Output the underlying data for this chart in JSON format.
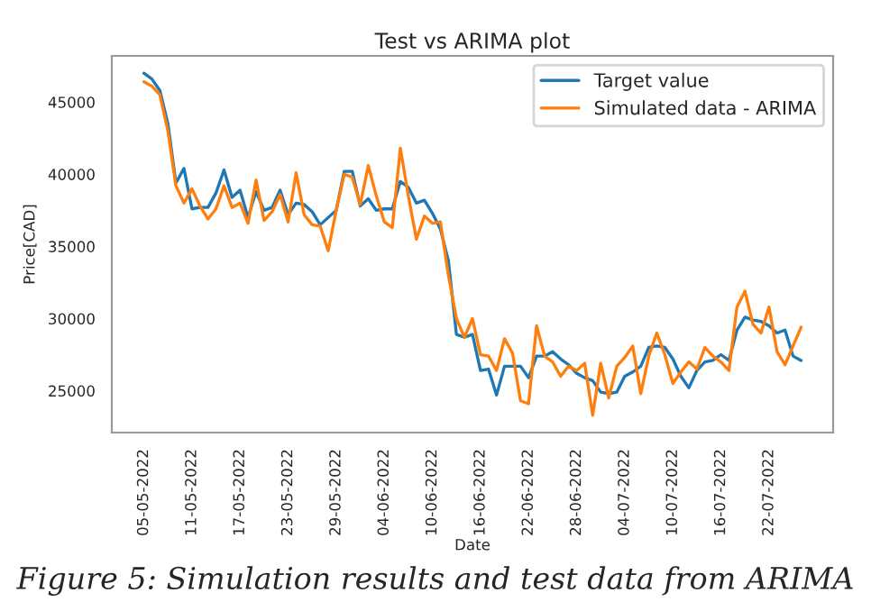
{
  "chart_data": {
    "type": "line",
    "title": "Test vs ARIMA plot",
    "xlabel": "Date",
    "ylabel": "Price[CAD]",
    "x": [
      "2022-05-05",
      "2022-05-06",
      "2022-05-07",
      "2022-05-08",
      "2022-05-09",
      "2022-05-10",
      "2022-05-11",
      "2022-05-12",
      "2022-05-13",
      "2022-05-14",
      "2022-05-15",
      "2022-05-16",
      "2022-05-17",
      "2022-05-18",
      "2022-05-19",
      "2022-05-20",
      "2022-05-21",
      "2022-05-22",
      "2022-05-23",
      "2022-05-24",
      "2022-05-25",
      "2022-05-26",
      "2022-05-27",
      "2022-05-28",
      "2022-05-29",
      "2022-05-30",
      "2022-05-31",
      "2022-06-01",
      "2022-06-02",
      "2022-06-03",
      "2022-06-04",
      "2022-06-05",
      "2022-06-06",
      "2022-06-07",
      "2022-06-08",
      "2022-06-09",
      "2022-06-10",
      "2022-06-11",
      "2022-06-12",
      "2022-06-13",
      "2022-06-14",
      "2022-06-15",
      "2022-06-16",
      "2022-06-17",
      "2022-06-18",
      "2022-06-19",
      "2022-06-20",
      "2022-06-21",
      "2022-06-22",
      "2022-06-23",
      "2022-06-24",
      "2022-06-25",
      "2022-06-26",
      "2022-06-27",
      "2022-06-28",
      "2022-06-29",
      "2022-06-30",
      "2022-07-01",
      "2022-07-02",
      "2022-07-03",
      "2022-07-04",
      "2022-07-05",
      "2022-07-06",
      "2022-07-07",
      "2022-07-08",
      "2022-07-09",
      "2022-07-10",
      "2022-07-11",
      "2022-07-12",
      "2022-07-13",
      "2022-07-14",
      "2022-07-15",
      "2022-07-16",
      "2022-07-17",
      "2022-07-18",
      "2022-07-19",
      "2022-07-20",
      "2022-07-21",
      "2022-07-22",
      "2022-07-23",
      "2022-07-24",
      "2022-07-25",
      "2022-07-26"
    ],
    "series": [
      {
        "name": "Target value",
        "color": "#1f77b4",
        "values": [
          47000,
          46600,
          45800,
          43500,
          39400,
          40400,
          37600,
          37700,
          37700,
          38700,
          40300,
          38400,
          38900,
          37000,
          38800,
          37500,
          37700,
          38900,
          37200,
          38000,
          37900,
          37400,
          36500,
          37000,
          37500,
          40200,
          40200,
          37800,
          38300,
          37500,
          37600,
          37600,
          39500,
          39100,
          38000,
          38200,
          37300,
          36200,
          34000,
          28900,
          28700,
          28900,
          26400,
          26500,
          24700,
          26700,
          26700,
          26700,
          25900,
          27400,
          27400,
          27700,
          27200,
          26800,
          26200,
          25900,
          25700,
          24900,
          24800,
          24900,
          26000,
          26300,
          26700,
          28000,
          28100,
          28000,
          27200,
          26000,
          25200,
          26400,
          27000,
          27100,
          27500,
          27100,
          29200,
          30100,
          29900,
          29800,
          29500,
          29000,
          29200,
          27400,
          27100
        ]
      },
      {
        "name": "Simulated data - ARIMA",
        "color": "#ff7f0e",
        "values": [
          46400,
          46100,
          45500,
          43000,
          39200,
          38000,
          39000,
          37800,
          36900,
          37600,
          39200,
          37700,
          38000,
          36600,
          39600,
          36800,
          37400,
          38600,
          36700,
          40100,
          37200,
          36500,
          36400,
          34700,
          37500,
          40000,
          39800,
          37900,
          40600,
          38500,
          36700,
          36300,
          41800,
          38500,
          35500,
          37100,
          36600,
          36700,
          33000,
          30000,
          28700,
          30000,
          27500,
          27400,
          26400,
          28600,
          27600,
          24300,
          24100,
          29500,
          27400,
          27000,
          26000,
          26700,
          26400,
          26900,
          23300,
          26900,
          24500,
          26700,
          27300,
          28100,
          24800,
          27400,
          29000,
          27500,
          25500,
          26300,
          27000,
          26500,
          28000,
          27400,
          27000,
          26400,
          30800,
          31900,
          29600,
          29000,
          30800,
          27700,
          26800,
          28100,
          29400
        ]
      }
    ],
    "xlim": [
      "2022-05-01",
      "2022-07-30"
    ],
    "xticks": [
      {
        "value": "2022-05-05",
        "label": "05-05-2022"
      },
      {
        "value": "2022-05-11",
        "label": "11-05-2022"
      },
      {
        "value": "2022-05-17",
        "label": "17-05-2022"
      },
      {
        "value": "2022-05-23",
        "label": "23-05-2022"
      },
      {
        "value": "2022-05-29",
        "label": "29-05-2022"
      },
      {
        "value": "2022-06-04",
        "label": "04-06-2022"
      },
      {
        "value": "2022-06-10",
        "label": "10-06-2022"
      },
      {
        "value": "2022-06-16",
        "label": "16-06-2022"
      },
      {
        "value": "2022-06-22",
        "label": "22-06-2022"
      },
      {
        "value": "2022-06-28",
        "label": "28-06-2022"
      },
      {
        "value": "2022-07-04",
        "label": "04-07-2022"
      },
      {
        "value": "2022-07-10",
        "label": "10-07-2022"
      },
      {
        "value": "2022-07-16",
        "label": "16-07-2022"
      },
      {
        "value": "2022-07-22",
        "label": "22-07-2022"
      }
    ],
    "ylim": [
      22100,
      48200
    ],
    "yticks": [
      25000,
      30000,
      35000,
      40000,
      45000
    ],
    "legend": "top right",
    "grid": false,
    "marker": "none",
    "line_style": "solid",
    "annotations": [
      "Figure 5: Simulation results and test data from ARIMA"
    ]
  }
}
